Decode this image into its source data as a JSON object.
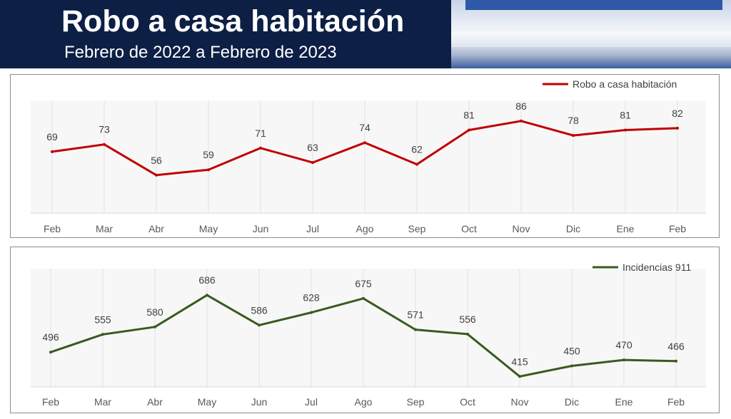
{
  "header": {
    "title": "Robo a casa habitación",
    "subtitle": "Febrero de 2022 a Febrero de 2023"
  },
  "chart_data": [
    {
      "type": "line",
      "categories": [
        "Feb",
        "Mar",
        "Abr",
        "May",
        "Jun",
        "Jul",
        "Ago",
        "Sep",
        "Oct",
        "Nov",
        "Dic",
        "Ene",
        "Feb"
      ],
      "series": [
        {
          "name": "Robo a casa habitación",
          "color": "#c00000",
          "values": [
            69,
            73,
            56,
            59,
            71,
            63,
            74,
            62,
            81,
            86,
            78,
            81,
            82
          ]
        }
      ],
      "ylim": [
        35,
        95
      ],
      "grid": "vertical",
      "legend": "top-right"
    },
    {
      "type": "line",
      "categories": [
        "Feb",
        "Mar",
        "Abr",
        "May",
        "Jun",
        "Jul",
        "Ago",
        "Sep",
        "Oct",
        "Nov",
        "Dic",
        "Ene",
        "Feb"
      ],
      "series": [
        {
          "name": "Incidencias 911",
          "color": "#3a5a1f",
          "values": [
            496,
            555,
            580,
            686,
            586,
            628,
            675,
            571,
            556,
            415,
            450,
            470,
            466
          ]
        }
      ],
      "ylim": [
        380,
        760
      ],
      "grid": "vertical",
      "legend": "top-right"
    }
  ]
}
